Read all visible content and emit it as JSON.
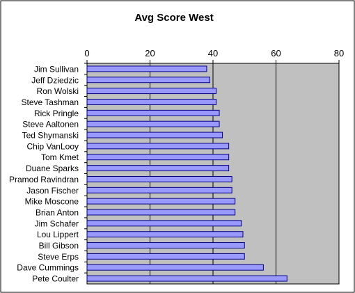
{
  "chart_data": {
    "type": "bar",
    "orientation": "horizontal",
    "title": "Avg Score West",
    "xlabel": "",
    "ylabel": "",
    "xlim": [
      0,
      80
    ],
    "x_ticks": [
      0,
      20,
      40,
      60,
      80
    ],
    "x_axis_position": "top",
    "grid": "vertical gridlines",
    "legend": "none",
    "colors": {
      "plot_background": "#c0c0c0",
      "bar_fill": "#9999ff",
      "bar_edge": "#000080",
      "gridline": "#000000",
      "frame": "#000000"
    },
    "categories": [
      "Jim Sullivan",
      "Jeff Dziedzic",
      "Ron Wolski",
      "Steve Tashman",
      "Rick Pringle",
      "Steve Aaltonen",
      "Ted Shymanski",
      "Chip VanLooy",
      "Tom Kmet",
      "Duane Sparks",
      "Pramod Ravindran",
      "Jason Fischer",
      "Mike Moscone",
      "Brian Anton",
      "Jim Schafer",
      "Lou Lippert",
      "Bill Gibson",
      "Steve Erps",
      "Dave Cummings",
      "Pete Coulter"
    ],
    "values": [
      38,
      39,
      41,
      41,
      42,
      42,
      43,
      45,
      45,
      45,
      46,
      46,
      47,
      47,
      49,
      49.5,
      50,
      50,
      56,
      63.5
    ]
  }
}
